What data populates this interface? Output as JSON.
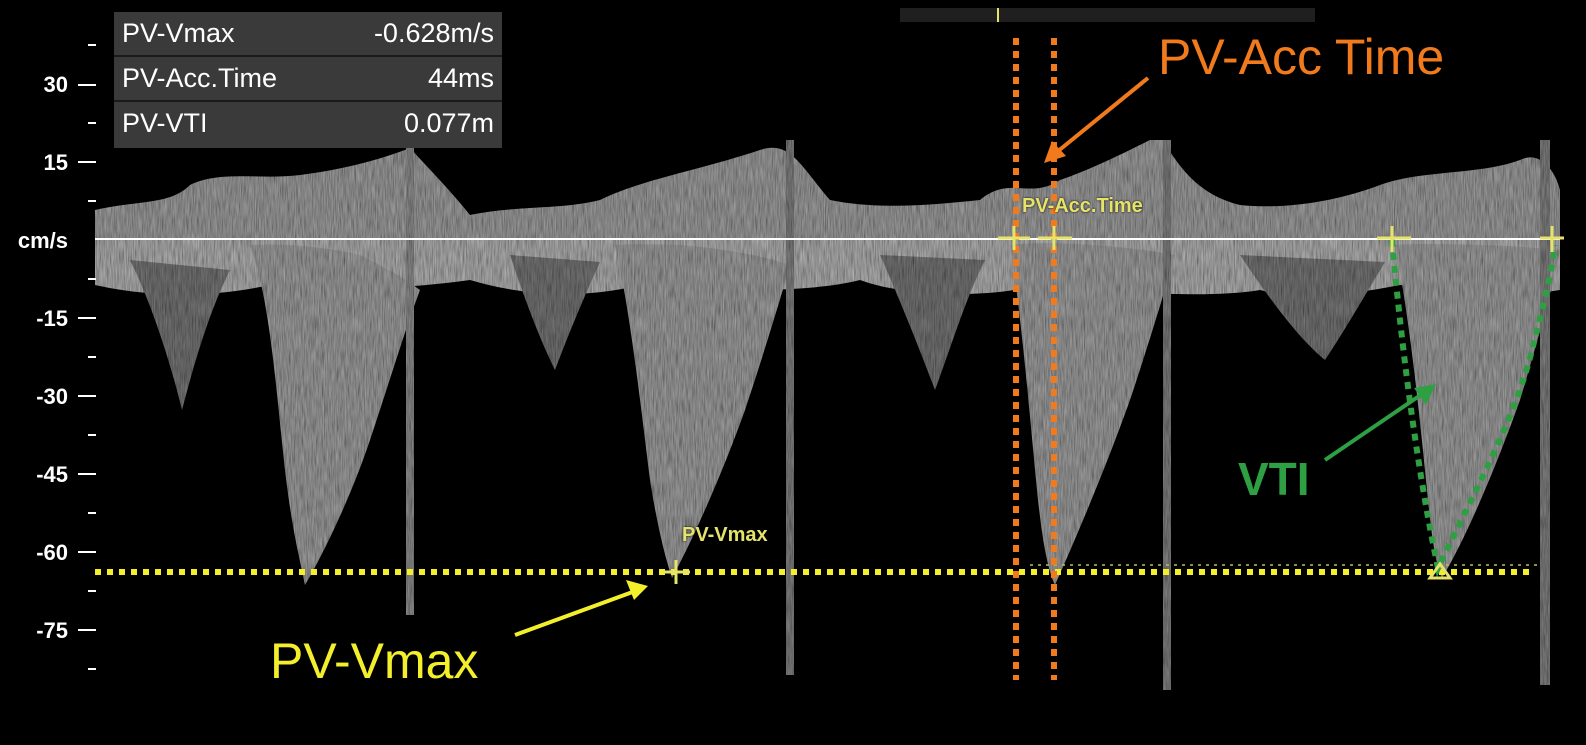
{
  "measurements": [
    {
      "label": "PV-Vmax",
      "value": "-0.628m/s"
    },
    {
      "label": "PV-Acc.Time",
      "value": "44ms"
    },
    {
      "label": "PV-VTI",
      "value": "0.077m"
    }
  ],
  "axis": {
    "unit": "cm/s",
    "ticks": [
      "30",
      "15",
      "-15",
      "-30",
      "-45",
      "-60",
      "-75"
    ]
  },
  "markers": {
    "vmax": "PV-Vmax",
    "acc_time": "PV-Acc.Time"
  },
  "annotations": {
    "vmax": "PV-Vmax",
    "acc_time": "PV-Acc Time",
    "vti": "VTI"
  },
  "colors": {
    "background": "#000000",
    "panel": "#3a3a3a",
    "vmax_annotation": "#f3ef2a",
    "acc_time_annotation": "#f07a1c",
    "vti_annotation": "#2ea043",
    "marker_text": "#e6e36a"
  }
}
